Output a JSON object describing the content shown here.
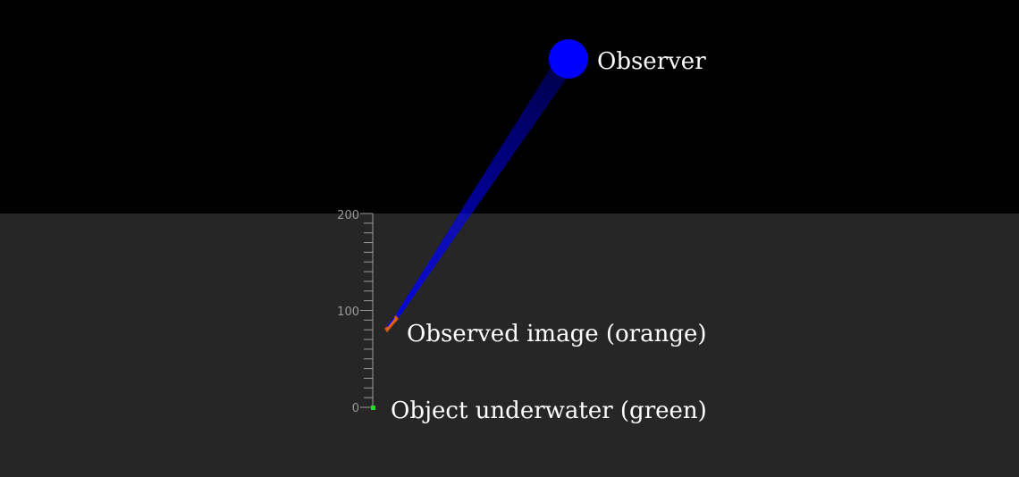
{
  "labels": {
    "observer": "Observer",
    "observed_image": "Observed image (orange)",
    "object_underwater": "Object underwater (green)"
  },
  "scale": {
    "ticks": [
      "0",
      "100",
      "200"
    ],
    "min": 0,
    "max": 200,
    "minor_step": 10,
    "major_step": 100
  },
  "points": {
    "object_depth_value": 0,
    "image_depth_value": 80
  },
  "colors": {
    "sky": "#000000",
    "water": "#262626",
    "observer": "#0000ff",
    "beam": "#0000ff",
    "image": "#e86a1a",
    "object": "#22dd22",
    "scale": "#9a9a9a",
    "text": "#ffffff"
  }
}
